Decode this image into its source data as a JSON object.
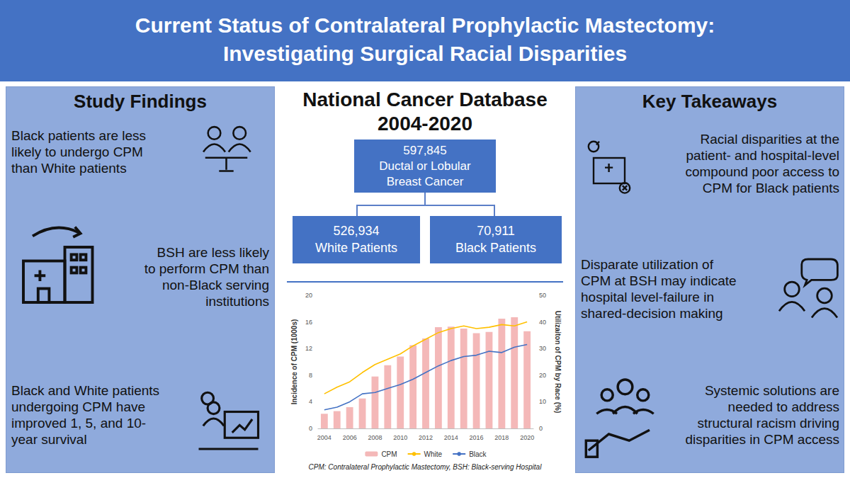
{
  "header": {
    "title": [
      "Current Status of Contralateral Prophylactic Mastectomy:",
      "Investigating Surgical Racial Disparities"
    ]
  },
  "findings": {
    "heading": "Study Findings",
    "items": [
      [
        "Black patients are less",
        "likely to undergo CPM",
        "than White patients"
      ],
      [
        "BSH are less likely",
        "to perform CPM than",
        "non-Black serving",
        "institutions"
      ],
      [
        "Black and White patients",
        "undergoing CPM have",
        "improved 1, 5, and 10-",
        "year survival"
      ]
    ]
  },
  "flow": {
    "title": [
      "National Cancer Database",
      "2004-2020"
    ],
    "root": [
      "597,845",
      "Ductal or Lobular",
      "Breast Cancer"
    ],
    "children": [
      [
        "526,934",
        "White Patients"
      ],
      [
        "70,911",
        "Black Patients"
      ]
    ]
  },
  "chart_data": {
    "type": "bar",
    "categories": [
      "2004",
      null,
      "2006",
      null,
      "2008",
      null,
      "2010",
      null,
      "2012",
      null,
      "2014",
      null,
      "2016",
      null,
      "2018",
      null,
      "2020"
    ],
    "ylabel": "Incidence of CPM (1000s)",
    "y2label": "Utilizaiton of CPM by Race (%)",
    "ylim": [
      0,
      20
    ],
    "yticks": [
      0,
      4,
      8,
      12,
      16,
      20
    ],
    "y2lim": [
      0,
      50
    ],
    "y2ticks": [
      0,
      10,
      20,
      30,
      40,
      50
    ],
    "grid": false,
    "legend": "bottom",
    "series": [
      {
        "name": "CPM",
        "type": "bar",
        "color": "#f4b8b8",
        "values": [
          2.2,
          2.6,
          3.2,
          4.5,
          7.8,
          9.5,
          10.8,
          12.5,
          13.5,
          15.2,
          15.3,
          15.0,
          14.3,
          14.5,
          16.5,
          16.7,
          14.6
        ]
      },
      {
        "name": "White",
        "type": "line",
        "axis": "y2",
        "color": "#ffc000",
        "values": [
          13,
          15.5,
          17.5,
          21,
          24,
          26,
          28,
          31,
          33.5,
          36,
          37.5,
          38.5,
          37.5,
          38,
          39,
          38.5,
          40
        ]
      },
      {
        "name": "Black",
        "type": "line",
        "axis": "y2",
        "color": "#4472c4",
        "values": [
          7,
          8,
          10,
          13,
          13.5,
          15,
          16.5,
          18.5,
          21,
          23.5,
          25.5,
          27,
          27.5,
          29,
          28.5,
          30.5,
          31.5
        ]
      }
    ]
  },
  "footnote": "CPM: Contralateral Prophylactic Mastectomy, BSH: Black-serving Hospital",
  "takeaways": {
    "heading": "Key Takeaways",
    "items": [
      [
        "Racial disparities at the",
        "patient- and hospital-level",
        "compound poor access to",
        "CPM for Black patients"
      ],
      [
        "Disparate utilization of",
        "CPM at BSH may indicate",
        "hospital level-failure in",
        "shared-decision making"
      ],
      [
        "Systemic solutions are",
        "needed to address",
        "structural racism driving",
        "disparities in CPM access"
      ]
    ]
  }
}
